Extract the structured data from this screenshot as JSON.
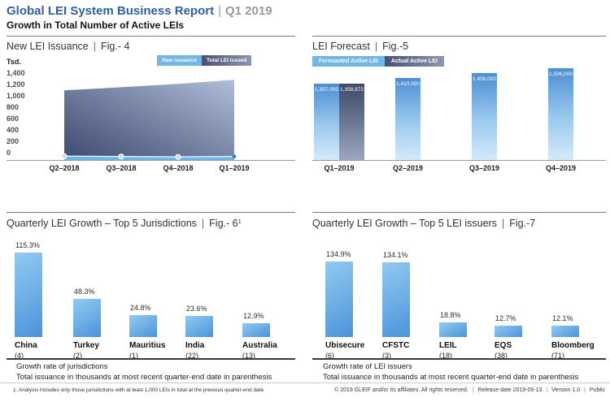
{
  "header": {
    "title": "Global LEI System Business Report",
    "separator": "|",
    "period": "Q1 2019",
    "subtitle": "Growth in Total Number of Active LEIs"
  },
  "colors": {
    "title_blue": "#31609b",
    "light_blue": "#72b6e6",
    "slate_blue": "#46526e",
    "growth_bar_top": "#92caf1",
    "growth_bar_bottom": "#4a94da"
  },
  "chart_data": [
    {
      "id": "fig4",
      "type": "area",
      "title": "New LEI Issuance",
      "fig_label": "Fig.- 4",
      "ylabel": "Tsd.",
      "x": [
        "Q2–2018",
        "Q3–2018",
        "Q4–2018",
        "Q1–2019"
      ],
      "series": [
        {
          "name": "New issuance",
          "values": [
            68,
            62,
            55,
            62
          ]
        },
        {
          "name": "Total LEI issued",
          "values": [
            1225,
            1280,
            1340,
            1410
          ]
        }
      ],
      "ylim": [
        0,
        1400
      ],
      "yticks": [
        "1,400",
        "1,200",
        "1,000",
        "800",
        "600",
        "400",
        "200",
        "0"
      ],
      "legend_position": "top-right",
      "grid": false
    },
    {
      "id": "fig5",
      "type": "bar",
      "title": "LEI Forecast",
      "fig_label": "Fig.-5",
      "categories": [
        "Q1–2019",
        "Q2–2019",
        "Q3–2019",
        "Q4–2019"
      ],
      "series": [
        {
          "name": "Forecasted Active LEI",
          "values": [
            1357000,
            1410000,
            1458000,
            1506000
          ],
          "labels": [
            "1,357,000",
            "1,410,000",
            "1,458,000",
            "1,506,000"
          ]
        },
        {
          "name": "Actual Active LEI",
          "values": [
            1358872,
            null,
            null,
            null
          ],
          "labels": [
            "1,358,872",
            "",
            "",
            ""
          ]
        }
      ],
      "legend_position": "top-left",
      "grid": false
    },
    {
      "id": "fig6",
      "type": "bar",
      "title": "Quarterly LEI Growth – Top 5 Jurisdictions",
      "fig_label": "Fig.- 6",
      "fig_superscript": "1",
      "categories": [
        "China",
        "Turkey",
        "Mauritius",
        "India",
        "Australia"
      ],
      "issuance_thousands": [
        "(4)",
        "(2)",
        "(1)",
        "(22)",
        "(13)"
      ],
      "values": [
        115.3,
        48.3,
        24.8,
        23.6,
        12.9
      ],
      "value_labels": [
        "115.3%",
        "48.3%",
        "24.8%",
        "23.6%",
        "12.9%"
      ],
      "caption_line1": "Growth rate of jurisdictions",
      "caption_line2": "Total issuance in thousands at most recent quarter-end date in parenthesis",
      "grid": false
    },
    {
      "id": "fig7",
      "type": "bar",
      "title": "Quarterly LEI Growth – Top 5 LEI issuers",
      "fig_label": "Fig.-7",
      "categories": [
        "Ubisecure",
        "CFSTC",
        "LEIL",
        "EQS",
        "Bloomberg"
      ],
      "issuance_thousands": [
        "(6)",
        "(3)",
        "(18)",
        "(38)",
        "(71)"
      ],
      "values": [
        134.9,
        134.1,
        18.8,
        12.7,
        12.1
      ],
      "value_labels": [
        "134.9%",
        "134.1%",
        "18.8%",
        "12.7%",
        "12.1%"
      ],
      "caption_line1": "Growth rate of LEI issuers",
      "caption_line2": "Total issuance in thousands at most recent quarter-end date in parenthesis",
      "grid": false
    }
  ],
  "footer": {
    "footnote": "1. Analysis includes only those jurisdictions with at least 1,000 LEIs in total at the previous quarter-end date",
    "copyright": "© 2019 GLEIF and/or its affiliates. All rights reserved.",
    "release": "Release date 2019-05-13",
    "version": "Version 1.0",
    "classification": "Public"
  }
}
